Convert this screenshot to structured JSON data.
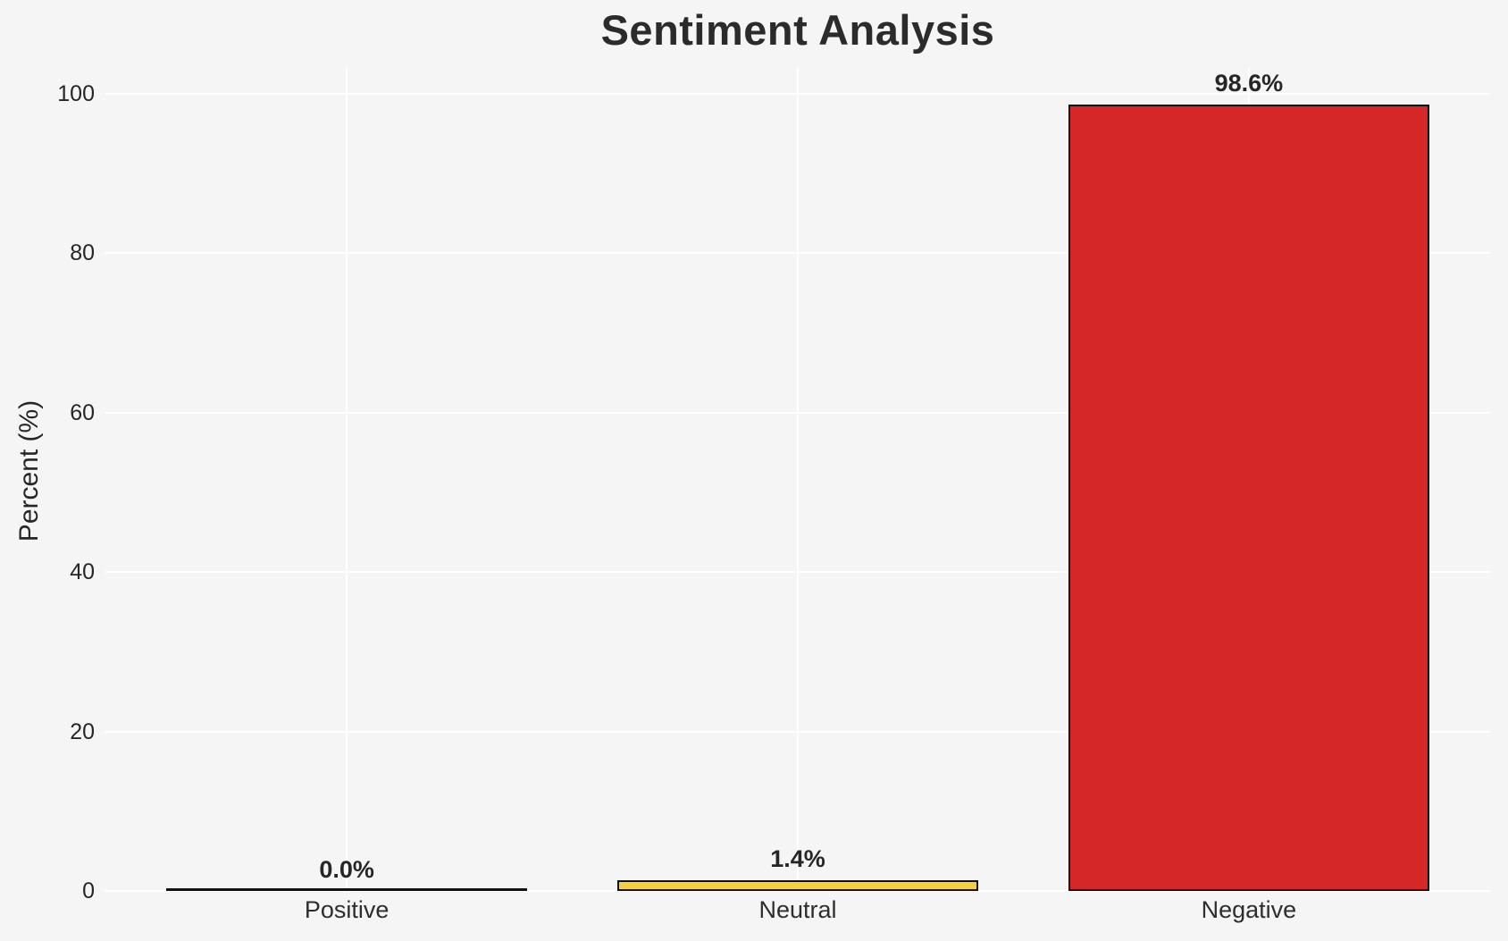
{
  "chart_data": {
    "type": "bar",
    "title": "Sentiment Analysis",
    "xlabel": "",
    "ylabel": "Percent (%)",
    "categories": [
      "Positive",
      "Neutral",
      "Negative"
    ],
    "values": [
      0.0,
      1.4,
      98.6
    ],
    "value_labels": [
      "0.0%",
      "1.4%",
      "98.6%"
    ],
    "bar_colors": [
      null,
      "#F7D13D",
      "#D62728"
    ],
    "bar_edge_color": "#111111",
    "yticks": [
      0,
      20,
      40,
      60,
      80,
      100
    ],
    "ytick_labels": [
      "0",
      "20",
      "40",
      "60",
      "80",
      "100"
    ],
    "ylim": [
      0,
      103.2
    ],
    "grid": true,
    "grid_color": "#ffffff",
    "background_color": "#f5f5f6",
    "legend_position": null
  }
}
